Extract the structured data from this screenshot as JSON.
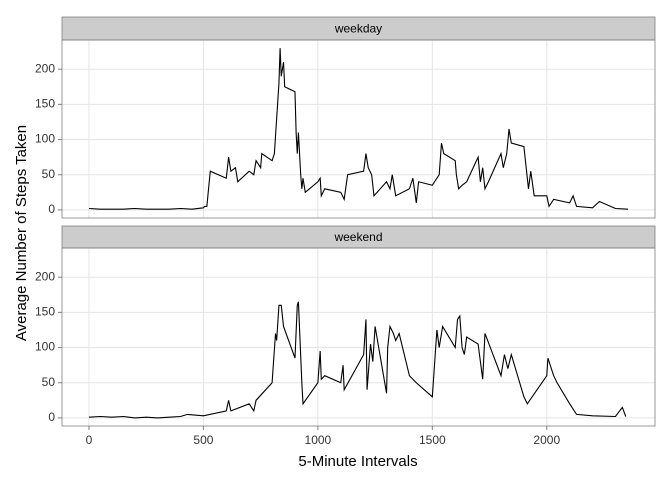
{
  "chart_data": {
    "type": "line",
    "xlabel": "5-Minute Intervals",
    "ylabel": "Average Number of Steps Taken",
    "xlim": [
      -117.75,
      2472.75
    ],
    "xticks": [
      0,
      500,
      1000,
      1500,
      2000
    ],
    "ylim": [
      -11.5,
      241.5
    ],
    "yticks": [
      0,
      50,
      100,
      150,
      200
    ],
    "grid": true,
    "color": "#000000",
    "panels": [
      {
        "title": "weekday",
        "x": [
          0,
          50,
          100,
          150,
          200,
          250,
          300,
          350,
          400,
          450,
          500,
          505,
          515,
          530,
          600,
          610,
          620,
          640,
          650,
          700,
          720,
          730,
          750,
          755,
          800,
          810,
          820,
          830,
          835,
          840,
          850,
          855,
          900,
          905,
          910,
          915,
          925,
          930,
          935,
          945,
          1000,
          1010,
          1015,
          1030,
          1100,
          1115,
          1130,
          1200,
          1210,
          1220,
          1235,
          1245,
          1300,
          1315,
          1325,
          1340,
          1400,
          1415,
          1430,
          1440,
          1500,
          1530,
          1540,
          1550,
          1600,
          1605,
          1615,
          1630,
          1650,
          1700,
          1710,
          1720,
          1730,
          1745,
          1800,
          1810,
          1825,
          1835,
          1845,
          1900,
          1910,
          1920,
          1930,
          1945,
          2000,
          2010,
          2030,
          2100,
          2115,
          2130,
          2200,
          2230,
          2300,
          2355
        ],
        "values": [
          2,
          1,
          1,
          1,
          2,
          1,
          1,
          1,
          2,
          1,
          3,
          5,
          5,
          55,
          45,
          75,
          55,
          60,
          40,
          55,
          50,
          70,
          60,
          80,
          70,
          80,
          130,
          180,
          230,
          190,
          210,
          175,
          168,
          110,
          80,
          110,
          50,
          30,
          45,
          25,
          40,
          45,
          20,
          30,
          25,
          15,
          50,
          55,
          80,
          60,
          50,
          20,
          40,
          30,
          50,
          20,
          30,
          45,
          10,
          40,
          35,
          50,
          95,
          80,
          70,
          50,
          30,
          35,
          40,
          75,
          40,
          60,
          30,
          40,
          80,
          60,
          80,
          115,
          95,
          90,
          60,
          30,
          55,
          20,
          20,
          5,
          15,
          10,
          20,
          5,
          3,
          12,
          2,
          1
        ]
      },
      {
        "title": "weekend",
        "x": [
          0,
          50,
          100,
          150,
          200,
          250,
          300,
          350,
          400,
          430,
          500,
          600,
          610,
          620,
          700,
          720,
          730,
          800,
          815,
          820,
          830,
          840,
          850,
          900,
          910,
          915,
          930,
          935,
          1000,
          1010,
          1015,
          1030,
          1100,
          1110,
          1115,
          1200,
          1210,
          1215,
          1230,
          1240,
          1250,
          1300,
          1305,
          1315,
          1330,
          1340,
          1355,
          1400,
          1430,
          1500,
          1520,
          1530,
          1545,
          1600,
          1610,
          1620,
          1630,
          1640,
          1650,
          1700,
          1720,
          1730,
          1800,
          1815,
          1830,
          1845,
          1900,
          1915,
          2000,
          2005,
          2030,
          2045,
          2100,
          2110,
          2130,
          2200,
          2300,
          2330,
          2345
        ],
        "values": [
          1,
          2,
          1,
          2,
          0,
          1,
          0,
          1,
          2,
          5,
          3,
          10,
          25,
          10,
          20,
          10,
          25,
          50,
          120,
          110,
          160,
          160,
          130,
          85,
          160,
          165,
          50,
          20,
          50,
          95,
          55,
          60,
          50,
          75,
          40,
          90,
          140,
          40,
          105,
          80,
          130,
          35,
          100,
          130,
          120,
          110,
          120,
          60,
          50,
          30,
          125,
          100,
          130,
          100,
          140,
          145,
          100,
          90,
          115,
          105,
          55,
          120,
          60,
          90,
          70,
          90,
          30,
          20,
          60,
          85,
          60,
          50,
          20,
          15,
          5,
          3,
          2,
          15,
          2
        ]
      }
    ]
  }
}
